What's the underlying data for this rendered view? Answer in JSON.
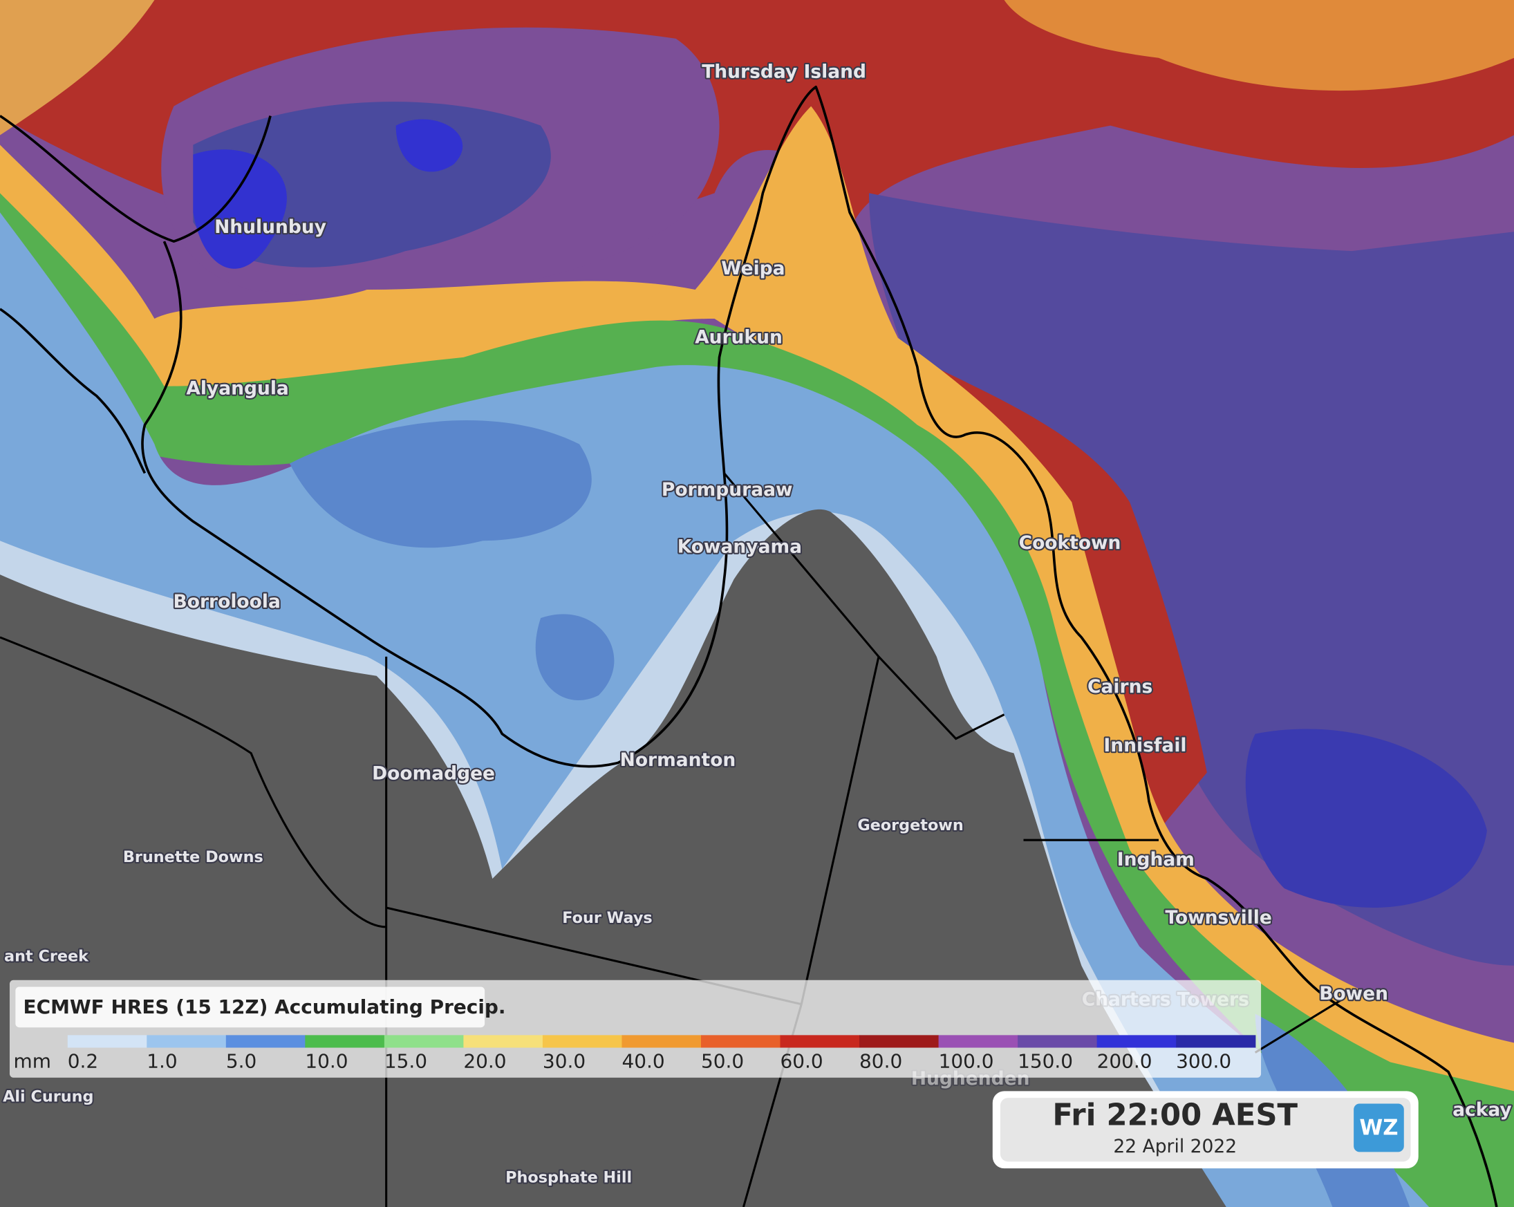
{
  "map": {
    "places": [
      "Thursday Island",
      "Nhulunbuy",
      "Weipa",
      "Aurukun",
      "Alyangula",
      "Pormpuraaw",
      "Kowanyama",
      "Cooktown",
      "Borroloola",
      "Cairns",
      "Innisfail",
      "Normanton",
      "Doomadgee",
      "Georgetown",
      "Brunette Downs",
      "Ingham",
      "Four Ways",
      "Townsville",
      "ant Creek",
      "Charters Towers",
      "Bowen",
      "Hughenden",
      "Ali Curung",
      "ackay",
      "Phosphate Hill"
    ]
  },
  "legend": {
    "title": "ECMWF HRES (15 12Z) Accumulating Precip.",
    "unit": "mm",
    "labels": [
      "0.2",
      "1.0",
      "5.0",
      "10.0",
      "15.0",
      "20.0",
      "30.0",
      "40.0",
      "50.0",
      "60.0",
      "80.0",
      "100.0",
      "150.0",
      "200.0",
      "300.0"
    ],
    "colors": [
      "#d3e4f6",
      "#9cc5ee",
      "#5b8fe0",
      "#4cbc4c",
      "#8fe08a",
      "#f6e07a",
      "#f6c54a",
      "#f09a30",
      "#e8602a",
      "#c8281e",
      "#9e1a1a",
      "#9a50b4",
      "#6a4aa8",
      "#3232d8",
      "#2a2aa8"
    ]
  },
  "timestamp": {
    "time": "Fri 22:00 AEST",
    "date": "22 April 2022",
    "logo": "WZ"
  }
}
